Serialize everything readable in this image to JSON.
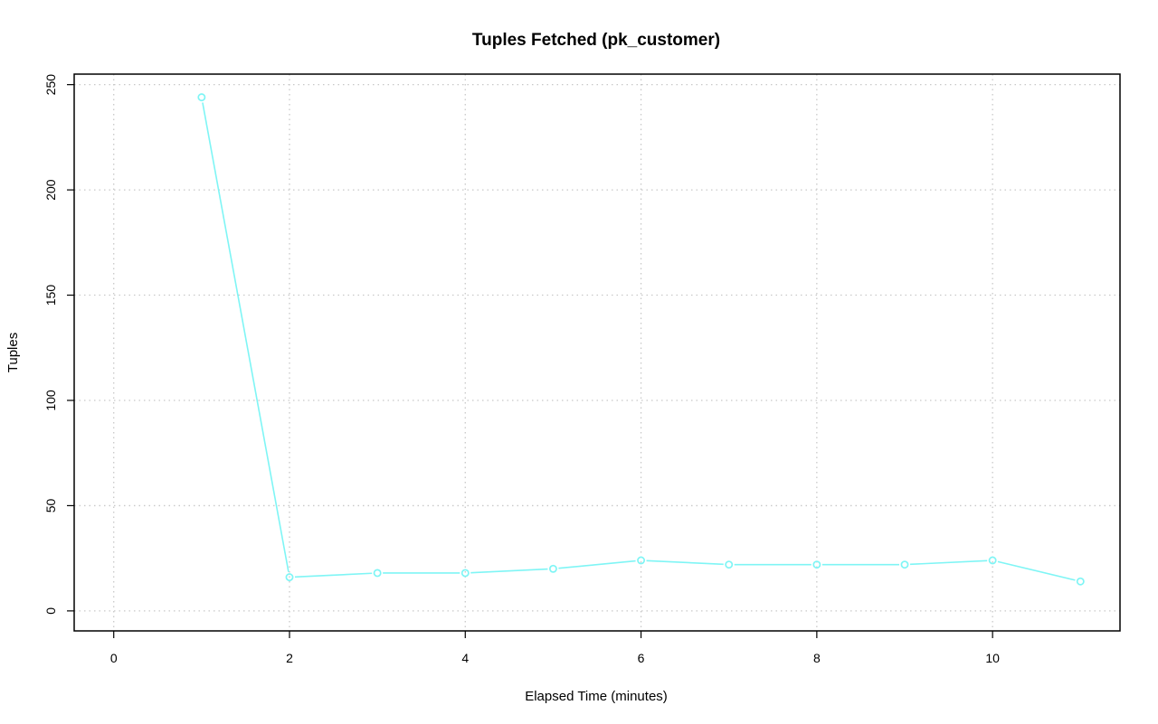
{
  "chart_data": {
    "type": "line",
    "title": "Tuples Fetched (pk_customer)",
    "xlabel": "Elapsed Time (minutes)",
    "ylabel": "Tuples",
    "x": [
      1,
      2,
      3,
      4,
      5,
      6,
      7,
      8,
      9,
      10,
      11
    ],
    "series": [
      {
        "values": [
          244,
          16,
          18,
          18,
          20,
          24,
          22,
          22,
          22,
          24,
          14
        ],
        "color": "#7ff5f5",
        "marker": "open-circle"
      }
    ],
    "xlim": [
      -0.45,
      11.45
    ],
    "ylim": [
      -9.5,
      255
    ],
    "xticks": [
      0,
      2,
      4,
      6,
      8,
      10
    ],
    "yticks": [
      0,
      50,
      100,
      150,
      200,
      250
    ],
    "grid": true,
    "legend": "none"
  }
}
